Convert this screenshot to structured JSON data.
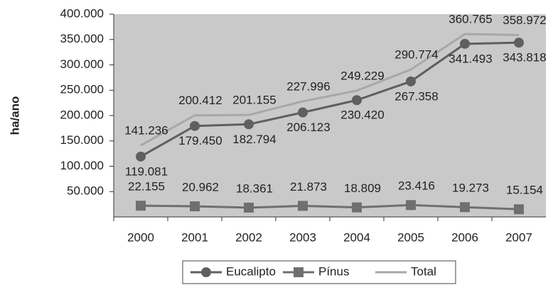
{
  "chart_data": {
    "type": "line",
    "y_label": "ha/ano",
    "categories": [
      "2000",
      "2001",
      "2002",
      "2003",
      "2004",
      "2005",
      "2006",
      "2007"
    ],
    "series": [
      {
        "name": "Eucalipto",
        "color": "#5f5f5f",
        "marker": "circle",
        "values": [
          119081,
          179450,
          182794,
          206123,
          230420,
          267358,
          341493,
          343818
        ],
        "value_labels": [
          "119.081",
          "179.450",
          "182.794",
          "206.123",
          "230.420",
          "267.358",
          "341.493",
          "343.818"
        ]
      },
      {
        "name": "Pínus",
        "color": "#6f6f6f",
        "marker": "square",
        "values": [
          22155,
          20962,
          18361,
          21873,
          18809,
          23416,
          19273,
          15154
        ],
        "value_labels": [
          "22.155",
          "20.962",
          "18.361",
          "21.873",
          "18.809",
          "23.416",
          "19.273",
          "15.154"
        ]
      },
      {
        "name": "Total",
        "color": "#a8a8a8",
        "marker": "none",
        "values": [
          141236,
          200412,
          201155,
          227996,
          249229,
          290774,
          360765,
          358972
        ],
        "value_labels": [
          "141.236",
          "200.412",
          "201.155",
          "227.996",
          "249.229",
          "290.774",
          "360.765",
          "358.972"
        ]
      }
    ],
    "ylim": [
      0,
      400000
    ],
    "yticks": [
      {
        "value": 50000,
        "label": "50.000"
      },
      {
        "value": 100000,
        "label": "100.000"
      },
      {
        "value": 150000,
        "label": "150.000"
      },
      {
        "value": 200000,
        "label": "200.000"
      },
      {
        "value": 250000,
        "label": "250.000"
      },
      {
        "value": 300000,
        "label": "300.000"
      },
      {
        "value": 350000,
        "label": "350.000"
      },
      {
        "value": 400000,
        "label": "400.000"
      }
    ],
    "legend": "bottom"
  }
}
